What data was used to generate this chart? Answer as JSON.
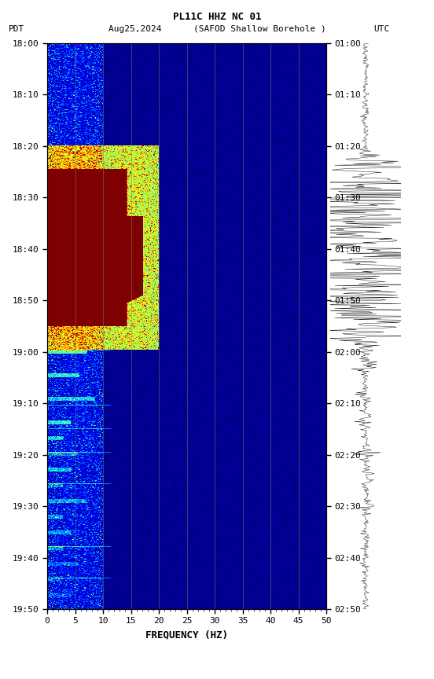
{
  "title_line1": "PL11C HHZ NC 01",
  "title_line2": "PDT   Aug25,2024      (SAFOD Shallow Borehole )                UTC",
  "xlabel": "FREQUENCY (HZ)",
  "ylabel_left": "PDT",
  "ylabel_right": "UTC",
  "freq_min": 0,
  "freq_max": 50,
  "time_start_label": "18:00",
  "time_end_label": "19:50",
  "time_ticks_left": [
    "18:00",
    "18:10",
    "18:20",
    "18:30",
    "18:40",
    "18:50",
    "19:00",
    "19:10",
    "19:20",
    "19:30",
    "19:40",
    "19:50"
  ],
  "time_ticks_right": [
    "01:00",
    "01:10",
    "01:20",
    "01:30",
    "01:40",
    "01:50",
    "02:00",
    "02:10",
    "02:20",
    "02:30",
    "02:40",
    "02:50"
  ],
  "freq_ticks": [
    0,
    5,
    10,
    15,
    20,
    25,
    30,
    35,
    40,
    45,
    50
  ],
  "background_color": "#ffffff",
  "spectrogram_bg": "#00008B",
  "grid_color": "#808060",
  "tick_color": "#000000",
  "font_family": "monospace"
}
